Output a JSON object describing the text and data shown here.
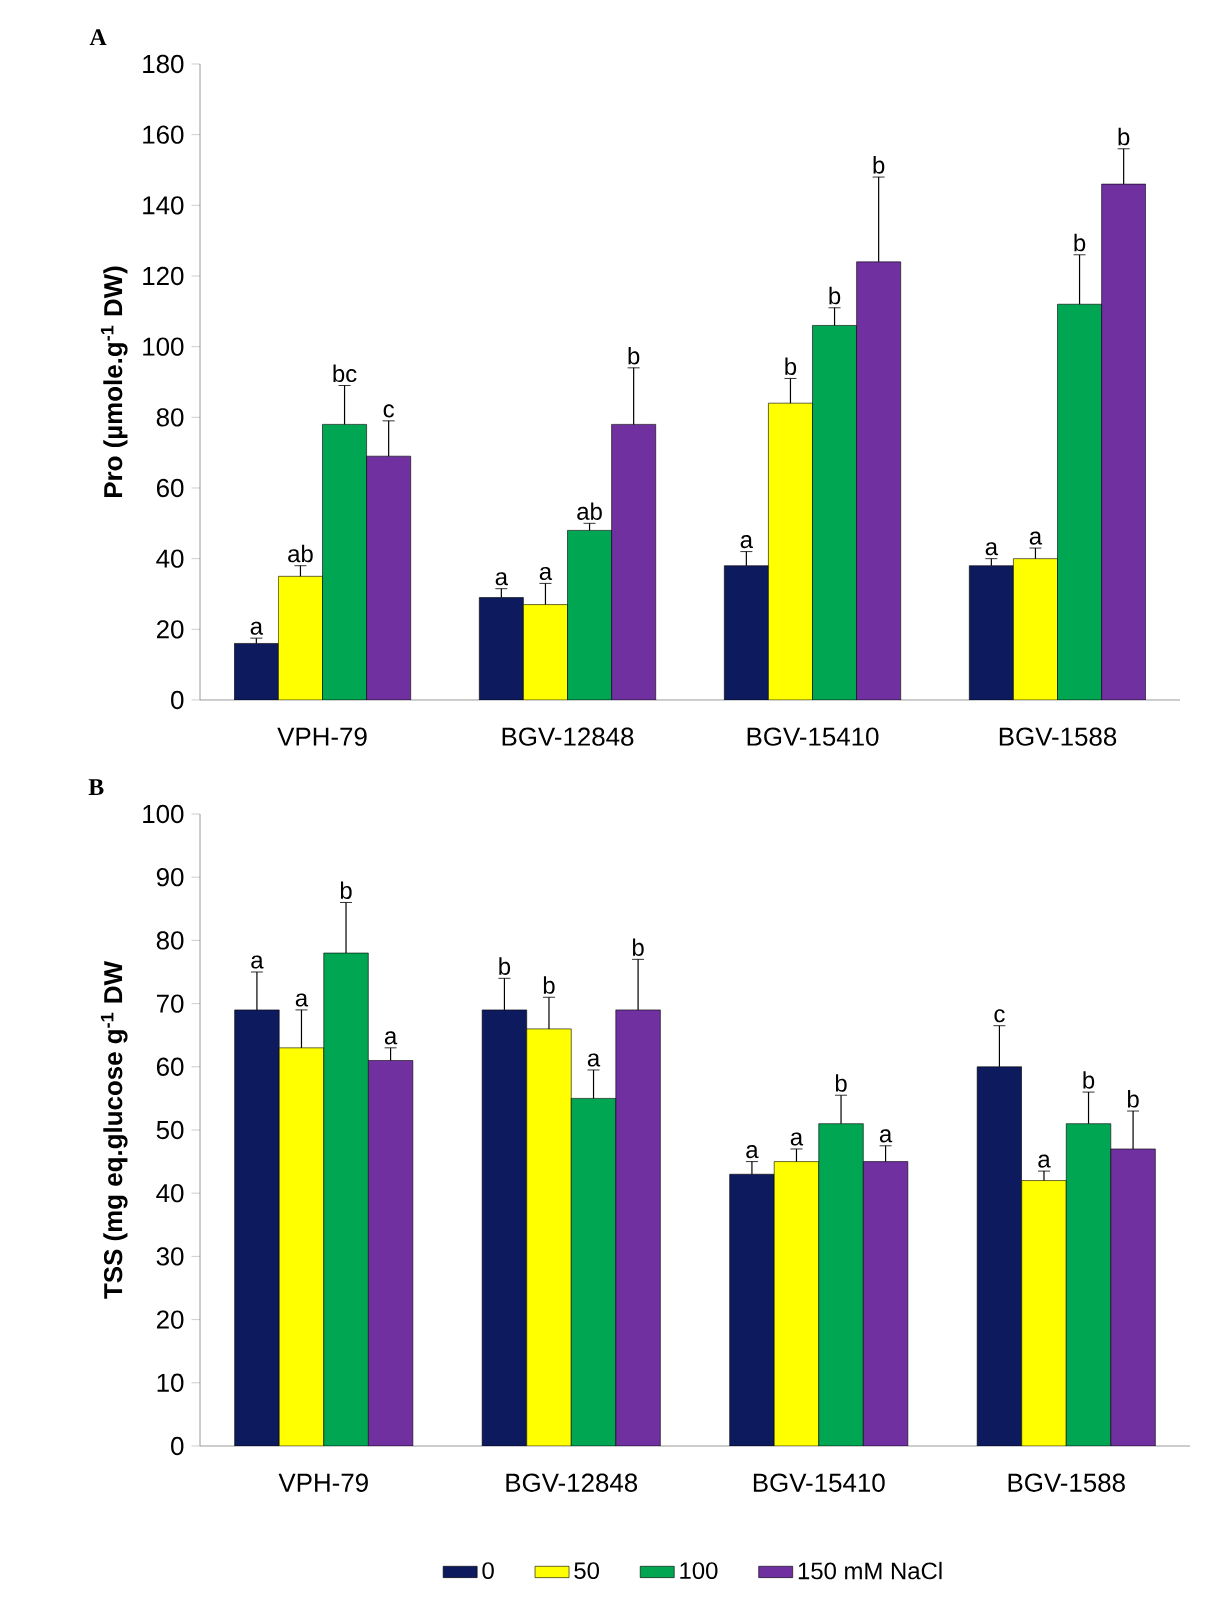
{
  "chart_data": [
    {
      "type": "bar",
      "title": "A",
      "ylabel": "Pro (µmole.g$^{-1}$ DW)",
      "categories": [
        "VPH-79",
        "BGV-12848",
        "BGV-15410",
        "BGV-1588"
      ],
      "series": [
        {
          "color": "#0d1b5e",
          "values": [
            16,
            29,
            38,
            38
          ],
          "errors": [
            1.5,
            2.5,
            4,
            2
          ]
        },
        {
          "color": "#ffff00",
          "values": [
            35,
            27,
            84,
            40
          ],
          "errors": [
            3,
            6,
            7,
            3
          ]
        },
        {
          "color": "#00a651",
          "values": [
            78,
            48,
            106,
            112
          ],
          "errors": [
            11,
            2,
            5,
            14
          ]
        },
        {
          "color": "#7030a0",
          "values": [
            69,
            78,
            124,
            146
          ],
          "errors": [
            10,
            16,
            24,
            10
          ]
        }
      ],
      "ylim": [
        0,
        180
      ],
      "yticks": [
        0,
        20,
        40,
        60,
        80,
        100,
        120,
        140,
        160,
        180
      ],
      "annotations": [
        "a",
        "ab",
        "bc",
        "c",
        "a",
        "a",
        "ab",
        "b",
        "a",
        "b",
        "b",
        "b",
        "a",
        "a",
        "b",
        "b"
      ]
    },
    {
      "type": "bar",
      "title": "B",
      "ylabel": "TSS (mg eq.glucose g$^{-1}$ DW",
      "categories": [
        "VPH-79",
        "BGV-12848",
        "BGV-15410",
        "BGV-1588"
      ],
      "series": [
        {
          "name": "0",
          "color": "#0d1b5e",
          "values": [
            69,
            69,
            43,
            60
          ],
          "errors": [
            6,
            5,
            2,
            6.5
          ]
        },
        {
          "name": "50",
          "color": "#ffff00",
          "values": [
            63,
            66,
            45,
            42
          ],
          "errors": [
            6,
            5,
            2,
            1.5
          ]
        },
        {
          "name": "100",
          "color": "#00a651",
          "values": [
            78,
            55,
            51,
            51
          ],
          "errors": [
            8,
            4.5,
            4.5,
            5
          ]
        },
        {
          "name": "150 mM NaCl",
          "color": "#7030a0",
          "values": [
            61,
            69,
            45,
            47
          ],
          "errors": [
            2,
            8,
            2.5,
            6
          ]
        }
      ],
      "ylim": [
        0,
        100
      ],
      "yticks": [
        0,
        10,
        20,
        30,
        40,
        50,
        60,
        70,
        80,
        90,
        100
      ],
      "legend": "bottom",
      "annotations": [
        "a",
        "a",
        "b",
        "a",
        "b",
        "b",
        "a",
        "b",
        "a",
        "a",
        "b",
        "a",
        "c",
        "a",
        "b",
        "b"
      ]
    }
  ]
}
